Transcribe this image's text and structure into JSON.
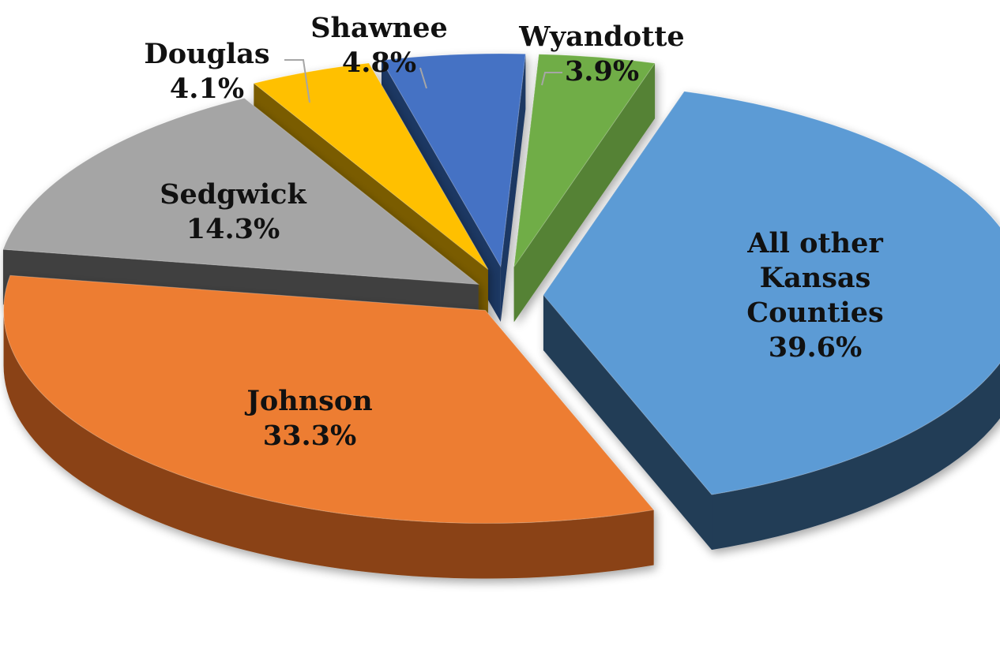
{
  "chart_data": {
    "type": "pie",
    "style": "3d-exploded",
    "title": "",
    "slices": [
      {
        "label_lines": [
          "All other",
          "Kansas",
          "Counties"
        ],
        "value": 39.6,
        "value_label": "39.6%",
        "color": "#5b9bd5",
        "side_color": "#233c57"
      },
      {
        "label_lines": [
          "Johnson"
        ],
        "value": 33.3,
        "value_label": "33.3%",
        "color": "#ed7d31",
        "side_color": "#8a4313"
      },
      {
        "label_lines": [
          "Sedgwick"
        ],
        "value": 14.3,
        "value_label": "14.3%",
        "color": "#a5a5a5",
        "side_color": "#404040"
      },
      {
        "label_lines": [
          "Douglas"
        ],
        "value": 4.1,
        "value_label": "4.1%",
        "color": "#ffc000",
        "side_color": "#7a5c00"
      },
      {
        "label_lines": [
          "Shawnee"
        ],
        "value": 4.8,
        "value_label": "4.8%",
        "color": "#4472c4",
        "side_color": "#1f3864"
      },
      {
        "label_lines": [
          "Wyandotte"
        ],
        "value": 3.9,
        "value_label": "3.9%",
        "color": "#70ad47",
        "side_color": "#548235"
      }
    ]
  }
}
